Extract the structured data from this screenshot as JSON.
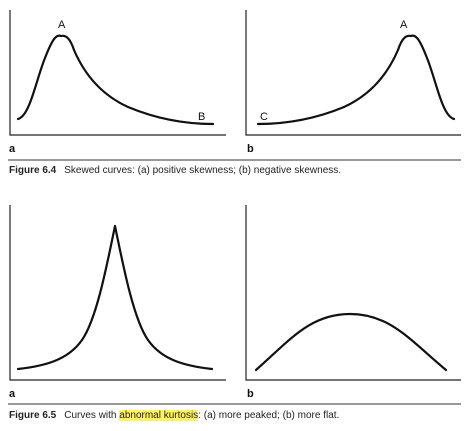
{
  "figure_6_4": {
    "panel_a": {
      "sublabel": "a",
      "point_a": "A",
      "point_b": "B"
    },
    "panel_b": {
      "sublabel": "b",
      "point_c": "C",
      "point_a": "A"
    },
    "caption": {
      "number": "Figure 6.4",
      "text": "Skewed curves: (a) positive skewness; (b) negative skewness."
    }
  },
  "figure_6_5": {
    "panel_a": {
      "sublabel": "a"
    },
    "panel_b": {
      "sublabel": "b"
    },
    "caption": {
      "number": "Figure 6.5",
      "pre": "Curves with ",
      "highlight": "abnormal kurtosis",
      "post": ": (a) more peaked; (b) more flat."
    }
  }
}
